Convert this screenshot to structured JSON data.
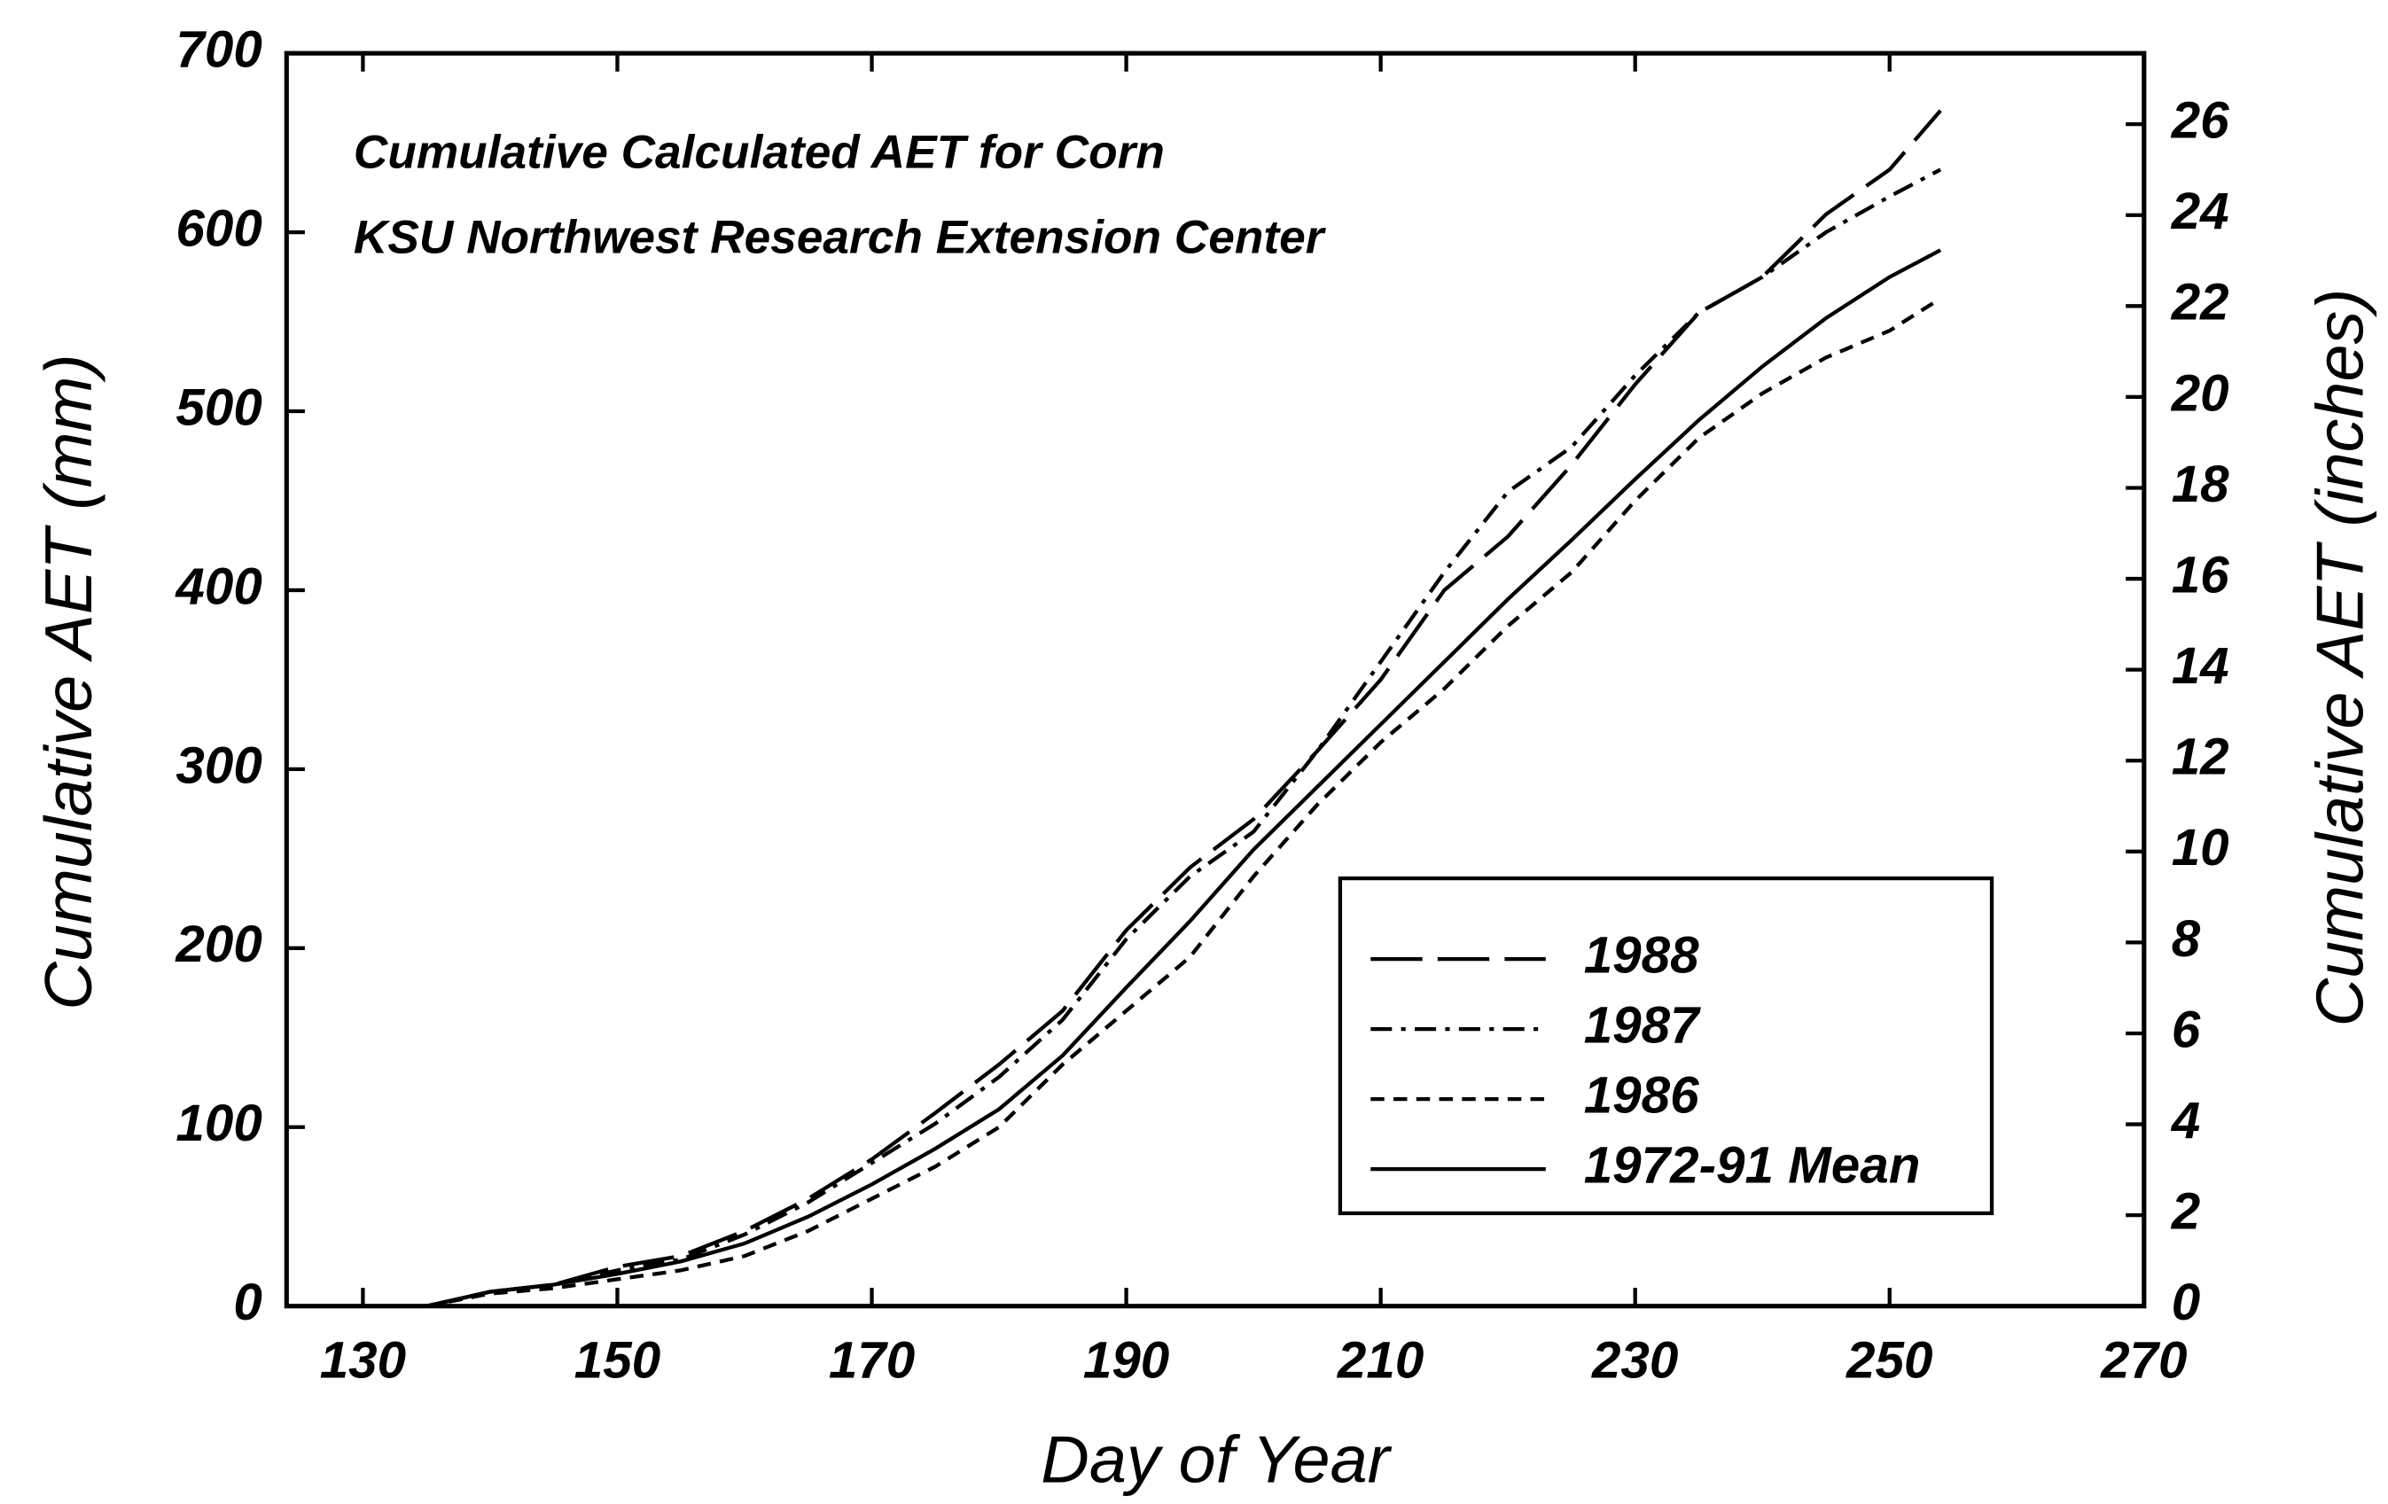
{
  "chart_data": {
    "type": "line",
    "annotations": [
      "Cumulative Calculated AET for Corn",
      "KSU Northwest Research Extension Center"
    ],
    "x_label": "Day of Year",
    "y_label": "Cumulative AET (mm)",
    "y2_label": "Cumulative AET (inches)",
    "x": [
      135,
      140,
      145,
      150,
      155,
      160,
      165,
      170,
      175,
      180,
      185,
      190,
      195,
      200,
      205,
      210,
      215,
      220,
      225,
      230,
      235,
      240,
      245,
      250,
      254
    ],
    "series": [
      {
        "name": "1988",
        "color": "#000000",
        "dash": "long-dash",
        "values": [
          0,
          8,
          12,
          22,
          28,
          42,
          60,
          82,
          108,
          135,
          165,
          210,
          245,
          272,
          310,
          350,
          400,
          430,
          470,
          515,
          555,
          575,
          610,
          635,
          668
        ]
      },
      {
        "name": "1987",
        "color": "#000000",
        "dash": "dash-dot",
        "values": [
          0,
          8,
          12,
          20,
          26,
          40,
          58,
          80,
          102,
          128,
          160,
          205,
          240,
          265,
          310,
          360,
          410,
          455,
          480,
          520,
          555,
          575,
          600,
          620,
          635
        ]
      },
      {
        "name": "1986",
        "color": "#000000",
        "dash": "short-dash",
        "values": [
          0,
          7,
          10,
          15,
          20,
          28,
          42,
          60,
          78,
          100,
          135,
          165,
          195,
          240,
          280,
          315,
          345,
          380,
          410,
          450,
          485,
          510,
          530,
          545,
          563
        ]
      },
      {
        "name": "1972-91 Mean",
        "color": "#000000",
        "dash": "solid",
        "values": [
          0,
          8,
          12,
          18,
          25,
          35,
          50,
          68,
          88,
          110,
          140,
          178,
          215,
          255,
          290,
          325,
          360,
          395,
          428,
          462,
          495,
          525,
          552,
          575,
          590
        ]
      }
    ],
    "xlim": [
      124,
      270
    ],
    "xticks": [
      130,
      150,
      170,
      190,
      210,
      230,
      250,
      270
    ],
    "ylim": [
      0,
      700
    ],
    "yticks": [
      0,
      100,
      200,
      300,
      400,
      500,
      600,
      700
    ],
    "y2lim": [
      0,
      27.56
    ],
    "y2ticks": [
      0,
      2,
      4,
      6,
      8,
      10,
      12,
      14,
      16,
      18,
      20,
      22,
      24,
      26
    ],
    "legend": "lower-right",
    "grid": false
  }
}
